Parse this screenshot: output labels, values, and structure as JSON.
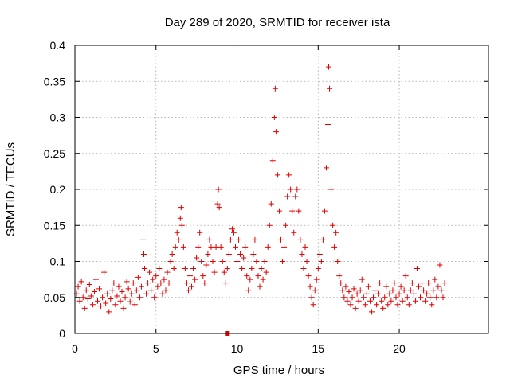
{
  "chart_data": {
    "type": "scatter",
    "title": "Day 289 of 2020, SRMTID for receiver ista",
    "xlabel": "GPS time / hours",
    "ylabel": "SRMTID / TECUs",
    "xlim": [
      0,
      25.5
    ],
    "ylim": [
      0,
      0.4
    ],
    "xticks": [
      0,
      5,
      10,
      15,
      20
    ],
    "xtick_labels": [
      "0",
      "5",
      "10",
      "15",
      "20"
    ],
    "yticks": [
      0,
      0.05,
      0.1,
      0.15,
      0.2,
      0.25,
      0.3,
      0.35,
      0.4
    ],
    "ytick_labels": [
      "0",
      "0.05",
      "0.1",
      "0.15",
      "0.2",
      "0.25",
      "0.3",
      "0.35",
      "0.4"
    ],
    "grid": true,
    "marker": "+",
    "color": "#e00000",
    "series": [
      {
        "values": [
          [
            0.1,
            0.055
          ],
          [
            0.2,
            0.065
          ],
          [
            0.3,
            0.045
          ],
          [
            0.4,
            0.072
          ],
          [
            0.5,
            0.05
          ],
          [
            0.6,
            0.035
          ],
          [
            0.7,
            0.06
          ],
          [
            0.8,
            0.048
          ],
          [
            0.9,
            0.068
          ],
          [
            1.0,
            0.052
          ],
          [
            1.1,
            0.04
          ],
          [
            1.2,
            0.058
          ],
          [
            1.3,
            0.075
          ],
          [
            1.4,
            0.045
          ],
          [
            1.5,
            0.062
          ],
          [
            1.6,
            0.038
          ],
          [
            1.7,
            0.05
          ],
          [
            1.8,
            0.085
          ],
          [
            1.9,
            0.042
          ],
          [
            2.0,
            0.055
          ],
          [
            2.1,
            0.03
          ],
          [
            2.2,
            0.048
          ],
          [
            2.3,
            0.06
          ],
          [
            2.4,
            0.07
          ],
          [
            2.5,
            0.04
          ],
          [
            2.6,
            0.052
          ],
          [
            2.7,
            0.065
          ],
          [
            2.8,
            0.045
          ],
          [
            2.9,
            0.058
          ],
          [
            3.0,
            0.035
          ],
          [
            3.1,
            0.05
          ],
          [
            3.2,
            0.072
          ],
          [
            3.3,
            0.062
          ],
          [
            3.4,
            0.044
          ],
          [
            3.5,
            0.055
          ],
          [
            3.6,
            0.07
          ],
          [
            3.7,
            0.04
          ],
          [
            3.8,
            0.06
          ],
          [
            3.9,
            0.078
          ],
          [
            4.0,
            0.05
          ],
          [
            4.1,
            0.065
          ],
          [
            4.2,
            0.13
          ],
          [
            4.25,
            0.11
          ],
          [
            4.3,
            0.09
          ],
          [
            4.4,
            0.055
          ],
          [
            4.5,
            0.07
          ],
          [
            4.6,
            0.085
          ],
          [
            4.7,
            0.06
          ],
          [
            4.8,
            0.075
          ],
          [
            4.9,
            0.05
          ],
          [
            5.0,
            0.08
          ],
          [
            5.1,
            0.065
          ],
          [
            5.2,
            0.09
          ],
          [
            5.3,
            0.07
          ],
          [
            5.4,
            0.055
          ],
          [
            5.5,
            0.075
          ],
          [
            5.6,
            0.06
          ],
          [
            5.7,
            0.085
          ],
          [
            5.8,
            0.07
          ],
          [
            5.9,
            0.1
          ],
          [
            6.0,
            0.11
          ],
          [
            6.1,
            0.09
          ],
          [
            6.2,
            0.12
          ],
          [
            6.3,
            0.14
          ],
          [
            6.4,
            0.13
          ],
          [
            6.5,
            0.16
          ],
          [
            6.55,
            0.175
          ],
          [
            6.6,
            0.15
          ],
          [
            6.7,
            0.12
          ],
          [
            6.8,
            0.09
          ],
          [
            6.9,
            0.07
          ],
          [
            7.0,
            0.06
          ],
          [
            7.1,
            0.08
          ],
          [
            7.2,
            0.065
          ],
          [
            7.3,
            0.09
          ],
          [
            7.4,
            0.075
          ],
          [
            7.5,
            0.105
          ],
          [
            7.6,
            0.12
          ],
          [
            7.7,
            0.14
          ],
          [
            7.8,
            0.1
          ],
          [
            7.9,
            0.08
          ],
          [
            8.0,
            0.07
          ],
          [
            8.1,
            0.095
          ],
          [
            8.2,
            0.11
          ],
          [
            8.3,
            0.13
          ],
          [
            8.4,
            0.12
          ],
          [
            8.5,
            0.1
          ],
          [
            8.6,
            0.085
          ],
          [
            8.7,
            0.12
          ],
          [
            8.8,
            0.18
          ],
          [
            8.85,
            0.2
          ],
          [
            8.9,
            0.175
          ],
          [
            9.0,
            0.12
          ],
          [
            9.1,
            0.1
          ],
          [
            9.2,
            0.085
          ],
          [
            9.3,
            0.07
          ],
          [
            9.4,
            0.09
          ],
          [
            9.5,
            0.11
          ],
          [
            9.6,
            0.13
          ],
          [
            9.7,
            0.145
          ],
          [
            9.8,
            0.14
          ],
          [
            9.9,
            0.12
          ],
          [
            10.0,
            0.1
          ],
          [
            10.1,
            0.13
          ],
          [
            10.2,
            0.11
          ],
          [
            10.3,
            0.09
          ],
          [
            10.4,
            0.105
          ],
          [
            10.5,
            0.12
          ],
          [
            10.6,
            0.08
          ],
          [
            10.7,
            0.06
          ],
          [
            10.8,
            0.075
          ],
          [
            10.9,
            0.09
          ],
          [
            11.0,
            0.11
          ],
          [
            11.1,
            0.13
          ],
          [
            11.2,
            0.1
          ],
          [
            11.3,
            0.08
          ],
          [
            11.4,
            0.065
          ],
          [
            11.5,
            0.09
          ],
          [
            11.6,
            0.075
          ],
          [
            11.7,
            0.1
          ],
          [
            11.8,
            0.085
          ],
          [
            11.9,
            0.12
          ],
          [
            12.0,
            0.15
          ],
          [
            12.1,
            0.18
          ],
          [
            12.2,
            0.24
          ],
          [
            12.3,
            0.3
          ],
          [
            12.35,
            0.34
          ],
          [
            12.4,
            0.28
          ],
          [
            12.5,
            0.22
          ],
          [
            12.6,
            0.17
          ],
          [
            12.7,
            0.13
          ],
          [
            12.8,
            0.1
          ],
          [
            12.9,
            0.12
          ],
          [
            13.0,
            0.15
          ],
          [
            13.1,
            0.19
          ],
          [
            13.2,
            0.22
          ],
          [
            13.3,
            0.2
          ],
          [
            13.4,
            0.17
          ],
          [
            13.5,
            0.14
          ],
          [
            13.6,
            0.19
          ],
          [
            13.7,
            0.2
          ],
          [
            13.8,
            0.17
          ],
          [
            13.9,
            0.13
          ],
          [
            14.0,
            0.11
          ],
          [
            14.1,
            0.09
          ],
          [
            14.2,
            0.12
          ],
          [
            14.3,
            0.1
          ],
          [
            14.4,
            0.08
          ],
          [
            14.5,
            0.065
          ],
          [
            14.6,
            0.05
          ],
          [
            14.7,
            0.04
          ],
          [
            14.8,
            0.06
          ],
          [
            14.9,
            0.075
          ],
          [
            15.0,
            0.09
          ],
          [
            15.1,
            0.11
          ],
          [
            15.2,
            0.1
          ],
          [
            15.3,
            0.13
          ],
          [
            15.4,
            0.17
          ],
          [
            15.5,
            0.23
          ],
          [
            15.6,
            0.29
          ],
          [
            15.65,
            0.37
          ],
          [
            15.7,
            0.34
          ],
          [
            15.8,
            0.2
          ],
          [
            15.9,
            0.15
          ],
          [
            16.0,
            0.12
          ],
          [
            16.1,
            0.14
          ],
          [
            16.2,
            0.1
          ],
          [
            16.3,
            0.08
          ],
          [
            16.4,
            0.07
          ],
          [
            16.5,
            0.06
          ],
          [
            16.6,
            0.05
          ],
          [
            16.7,
            0.065
          ],
          [
            16.8,
            0.045
          ],
          [
            16.9,
            0.058
          ],
          [
            17.0,
            0.04
          ],
          [
            17.1,
            0.05
          ],
          [
            17.2,
            0.062
          ],
          [
            17.3,
            0.035
          ],
          [
            17.4,
            0.055
          ],
          [
            17.5,
            0.045
          ],
          [
            17.6,
            0.06
          ],
          [
            17.7,
            0.075
          ],
          [
            17.8,
            0.05
          ],
          [
            17.9,
            0.04
          ],
          [
            18.0,
            0.055
          ],
          [
            18.1,
            0.065
          ],
          [
            18.2,
            0.045
          ],
          [
            18.3,
            0.03
          ],
          [
            18.4,
            0.05
          ],
          [
            18.5,
            0.06
          ],
          [
            18.6,
            0.04
          ],
          [
            18.7,
            0.055
          ],
          [
            18.8,
            0.07
          ],
          [
            18.9,
            0.045
          ],
          [
            19.0,
            0.035
          ],
          [
            19.1,
            0.05
          ],
          [
            19.2,
            0.065
          ],
          [
            19.3,
            0.04
          ],
          [
            19.4,
            0.055
          ],
          [
            19.5,
            0.045
          ],
          [
            19.6,
            0.06
          ],
          [
            19.7,
            0.07
          ],
          [
            19.8,
            0.05
          ],
          [
            19.9,
            0.04
          ],
          [
            20.0,
            0.055
          ],
          [
            20.1,
            0.065
          ],
          [
            20.2,
            0.045
          ],
          [
            20.3,
            0.06
          ],
          [
            20.4,
            0.08
          ],
          [
            20.5,
            0.05
          ],
          [
            20.6,
            0.04
          ],
          [
            20.7,
            0.06
          ],
          [
            20.8,
            0.07
          ],
          [
            20.9,
            0.055
          ],
          [
            21.0,
            0.045
          ],
          [
            21.1,
            0.09
          ],
          [
            21.2,
            0.065
          ],
          [
            21.3,
            0.05
          ],
          [
            21.4,
            0.07
          ],
          [
            21.5,
            0.06
          ],
          [
            21.6,
            0.045
          ],
          [
            21.7,
            0.055
          ],
          [
            21.8,
            0.07
          ],
          [
            21.9,
            0.05
          ],
          [
            22.0,
            0.04
          ],
          [
            22.1,
            0.06
          ],
          [
            22.2,
            0.075
          ],
          [
            22.3,
            0.05
          ],
          [
            22.4,
            0.065
          ],
          [
            22.5,
            0.095
          ],
          [
            22.6,
            0.06
          ],
          [
            22.7,
            0.05
          ],
          [
            22.8,
            0.07
          ]
        ]
      }
    ],
    "markers": [
      {
        "x": 9.4,
        "y": 0.0,
        "shape": "square"
      }
    ]
  }
}
